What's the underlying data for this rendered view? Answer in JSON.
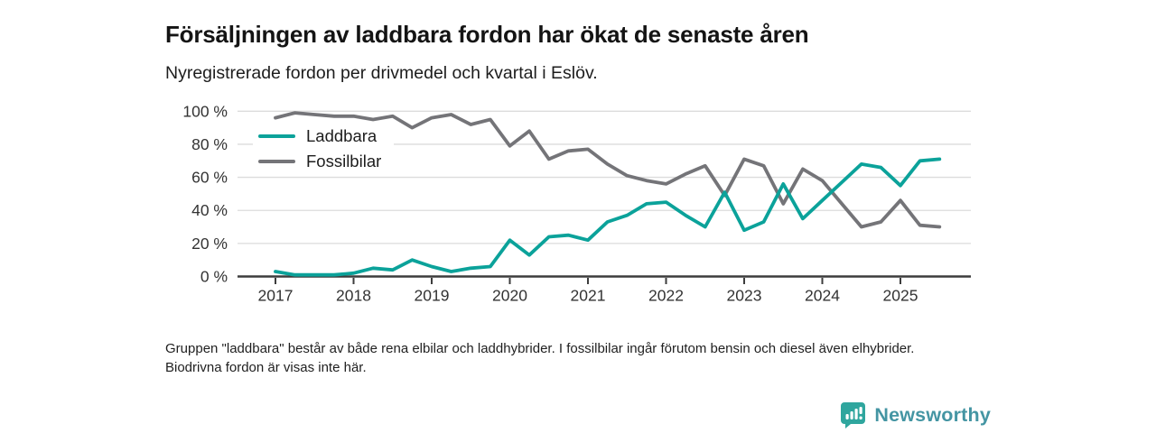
{
  "title": "Försäljningen av laddbara fordon har ökat de senaste åren",
  "subtitle": "Nyregistrerade fordon per drivmedel och kvartal i Eslöv.",
  "footnote": "Gruppen \"laddbara\" består av både rena elbilar och laddhybrider. I fossilbilar ingår förutom bensin och diesel även elhybrider. Biodrivna fordon är visas inte här.",
  "logo": {
    "text": "Newsworthy",
    "badge_color": "#2fa69e",
    "text_color": "#4495a3",
    "badge_icon": "bar-chart-pin-icon"
  },
  "colors": {
    "laddbara_line": "#0ba29a",
    "fossilbilar_line": "#747478",
    "gridline": "#dcdcdc",
    "axis": "#3d3d3d",
    "axis_text": "#333333"
  },
  "chart_data": {
    "type": "line",
    "title": "Försäljningen av laddbara fordon har ökat de senaste åren",
    "subtitle": "Nyregistrerade fordon per drivmedel och kvartal i Eslöv.",
    "unit": "%",
    "x_start": 2017,
    "x_step": 0.25,
    "x_note": "quarterly values 2017 Q1 - 2025 Q3",
    "xticks": [
      "2017",
      "2018",
      "2019",
      "2020",
      "2021",
      "2022",
      "2023",
      "2024",
      "2025"
    ],
    "yticks": [
      {
        "v": 0,
        "label": "0 %"
      },
      {
        "v": 20,
        "label": "20 %"
      },
      {
        "v": 40,
        "label": "40 %"
      },
      {
        "v": 60,
        "label": "60 %"
      },
      {
        "v": 80,
        "label": "80 %"
      },
      {
        "v": 100,
        "label": "100 %"
      }
    ],
    "ylim": [
      0,
      100
    ],
    "grid": true,
    "legend_position": "top-left-inside",
    "series": [
      {
        "name": "Laddbara",
        "color": "#0ba29a",
        "values": [
          3,
          1,
          1,
          1,
          2,
          5,
          4,
          10,
          6,
          3,
          5,
          6,
          22,
          13,
          24,
          25,
          22,
          33,
          37,
          44,
          45,
          37,
          30,
          51,
          28,
          33,
          56,
          35,
          46,
          57,
          68,
          66,
          55,
          70,
          71
        ]
      },
      {
        "name": "Fossilbilar",
        "color": "#747478",
        "values": [
          96,
          99,
          98,
          97,
          97,
          95,
          97,
          90,
          96,
          98,
          92,
          95,
          79,
          88,
          71,
          76,
          77,
          68,
          61,
          58,
          56,
          62,
          67,
          49,
          71,
          67,
          44,
          65,
          58,
          44,
          30,
          33,
          46,
          31,
          30
        ]
      }
    ]
  }
}
